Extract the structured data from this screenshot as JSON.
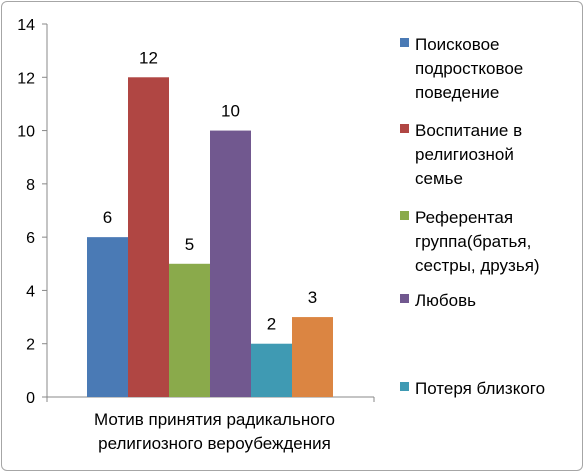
{
  "chart_data": {
    "type": "bar",
    "categories": [
      "Мотив принятия радикального религиозного вероубеждения"
    ],
    "category_label_lines": [
      "Мотив принятия радикального",
      "религиозного вероубеждения"
    ],
    "ylim": [
      0,
      14
    ],
    "yticks": [
      0,
      2,
      4,
      6,
      8,
      10,
      12,
      14
    ],
    "grid": false,
    "legend_position": "right",
    "series": [
      {
        "name": "Поисковое подростковое поведение",
        "legend_lines": [
          "Поисковое",
          "подростковое",
          "поведение"
        ],
        "values": [
          6
        ],
        "color": "#4a7ab5"
      },
      {
        "name": "Воспитание в религиозной семье",
        "legend_lines": [
          "Воспитание в",
          "религиозной",
          "семье"
        ],
        "values": [
          12
        ],
        "color": "#b04643"
      },
      {
        "name": "Референтая группа(братья, сестры, друзья)",
        "legend_lines": [
          "Референтая",
          "группа(братья,",
          "сестры, друзья)"
        ],
        "values": [
          5
        ],
        "color": "#8aaa4b"
      },
      {
        "name": "Любовь",
        "legend_lines": [
          "Любовь"
        ],
        "values": [
          10
        ],
        "color": "#71588f"
      },
      {
        "name": "Потеря близкого",
        "legend_lines": [
          "Потеря близкого"
        ],
        "values": [
          2
        ],
        "color": "#3f9ab3"
      },
      {
        "name": "",
        "legend_lines": [],
        "values": [
          3
        ],
        "color": "#db8542"
      }
    ]
  }
}
